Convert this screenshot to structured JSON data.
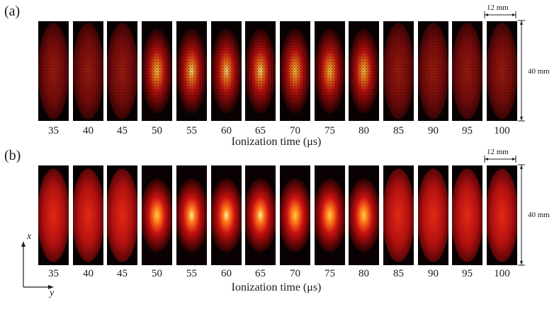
{
  "figure": {
    "panels": [
      {
        "label": "(a)",
        "kind": "raw"
      },
      {
        "label": "(b)",
        "kind": "smoothed"
      }
    ],
    "times": [
      "35",
      "40",
      "45",
      "50",
      "55",
      "60",
      "65",
      "70",
      "75",
      "80",
      "85",
      "90",
      "95",
      "100"
    ],
    "intensity": [
      0.55,
      0.6,
      0.6,
      0.75,
      1.0,
      1.0,
      0.92,
      0.85,
      0.75,
      0.62,
      0.55,
      0.5,
      0.45,
      0.42
    ],
    "axis_title": "Ionization time (μs)",
    "width_scale": "12 mm",
    "height_scale": "40 mm",
    "coord_x": "x",
    "coord_y": "y"
  }
}
